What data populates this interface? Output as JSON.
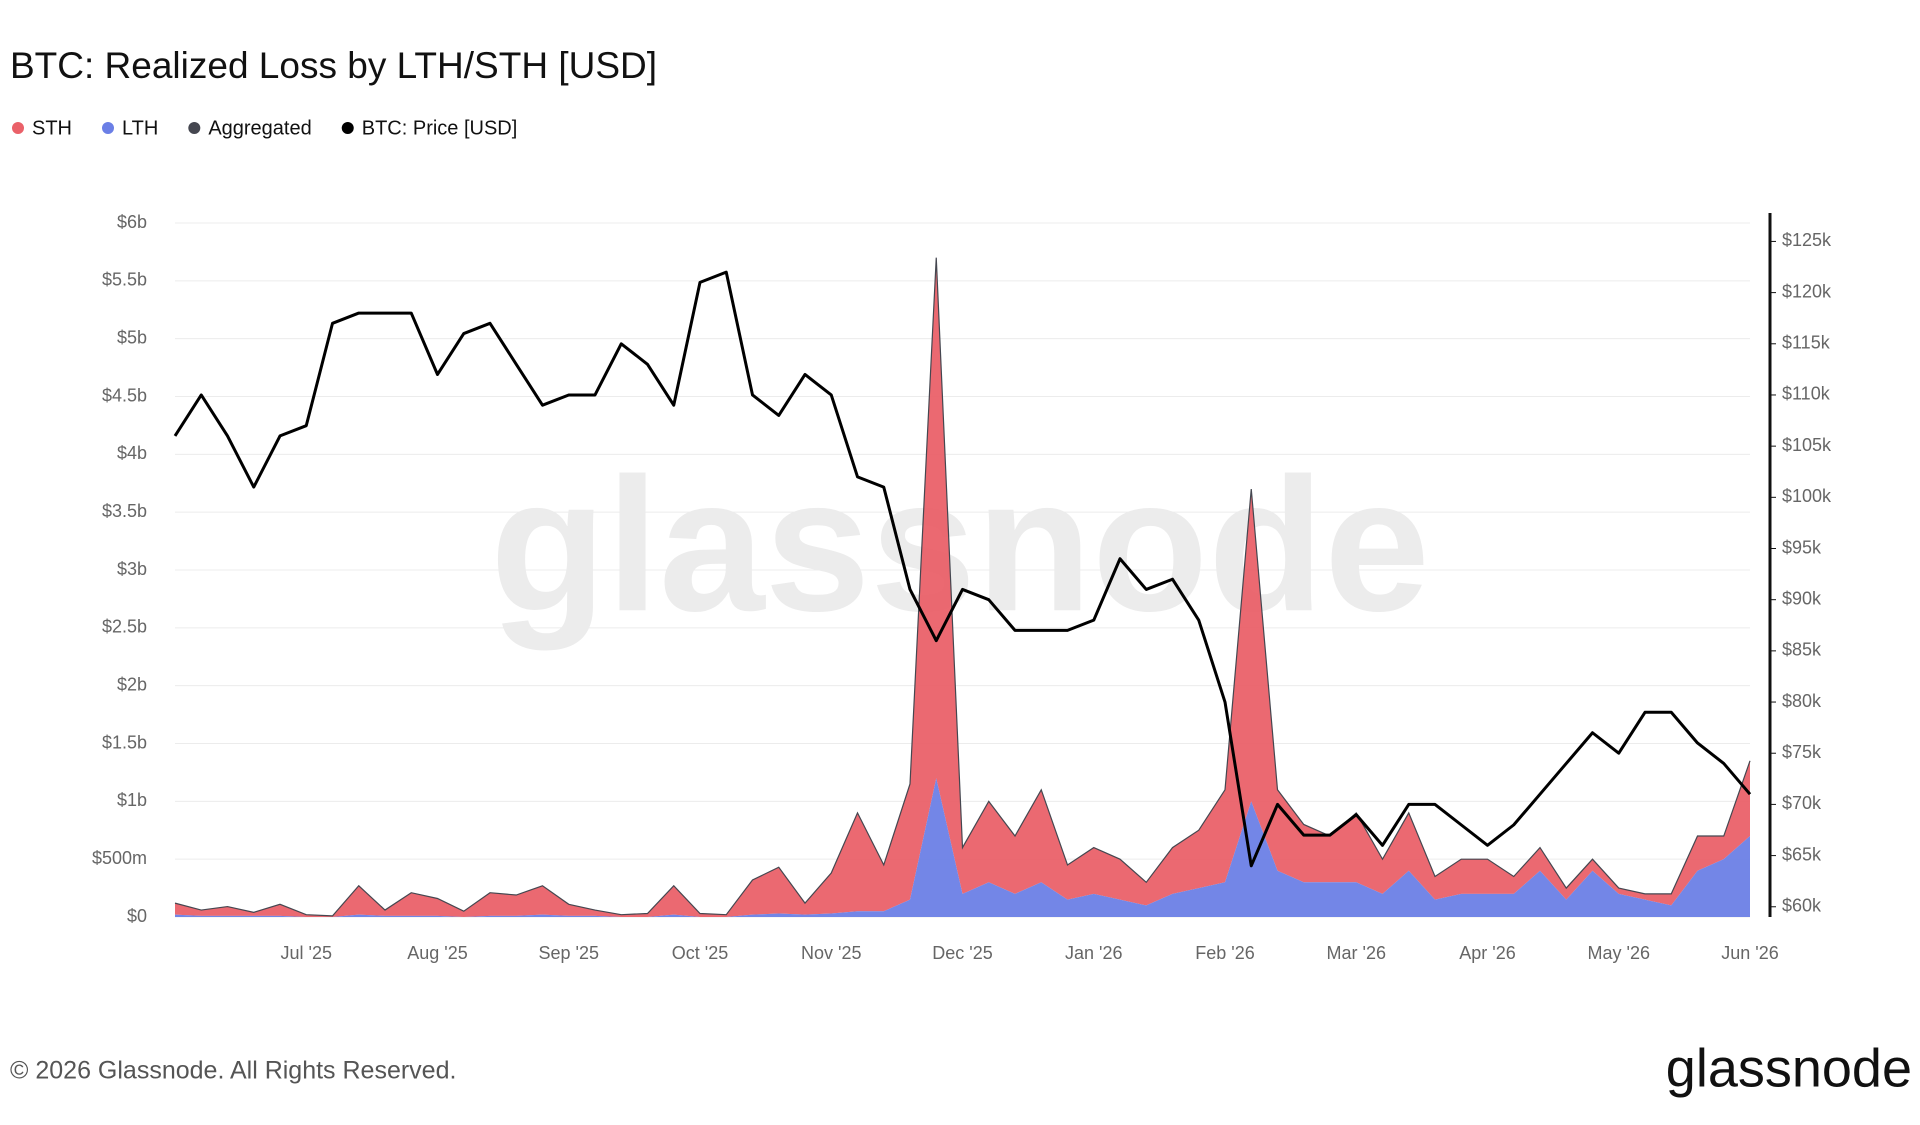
{
  "chart_data": {
    "type": "stacked-area-line",
    "title": "BTC: Realized Loss by LTH/STH [USD]",
    "categories": [
      null,
      null,
      null,
      null,
      null,
      "Jul '25",
      null,
      null,
      null,
      null,
      "Aug '25",
      null,
      null,
      null,
      null,
      "Sep '25",
      null,
      null,
      null,
      null,
      "Oct '25",
      null,
      null,
      null,
      null,
      "Nov '25",
      null,
      null,
      null,
      null,
      "Dec '25",
      null,
      null,
      null,
      null,
      "Jan '26",
      null,
      null,
      null,
      null,
      "Feb '26",
      null,
      null,
      null,
      null,
      "Mar '26",
      null,
      null,
      null,
      null,
      "Apr '26",
      null,
      null,
      null,
      null,
      "May '26",
      null,
      null,
      null,
      null,
      "Jun '26"
    ],
    "series": [
      {
        "name": "STH",
        "color": "#ea6169",
        "values": [
          100000000.0,
          50000000.0,
          80000000.0,
          30000000.0,
          100000000.0,
          20000000.0,
          10000000.0,
          250000000.0,
          50000000.0,
          200000000.0,
          150000000.0,
          50000000.0,
          200000000.0,
          180000000.0,
          250000000.0,
          100000000.0,
          50000000.0,
          20000000.0,
          30000000.0,
          250000000.0,
          30000000.0,
          20000000.0,
          300000000.0,
          400000000.0,
          100000000.0,
          350000000.0,
          850000000.0,
          400000000.0,
          1000000000.0,
          4500000000.0,
          400000000.0,
          700000000.0,
          500000000.0,
          800000000.0,
          300000000.0,
          400000000.0,
          350000000.0,
          200000000.0,
          400000000.0,
          500000000.0,
          800000000.0,
          2700000000.0,
          700000000.0,
          500000000.0,
          400000000.0,
          600000000.0,
          300000000.0,
          500000000.0,
          200000000.0,
          300000000.0,
          300000000.0,
          150000000.0,
          200000000.0,
          100000000.0,
          100000000.0,
          50000000.0,
          50000000.0,
          100000000.0,
          300000000.0,
          200000000.0,
          650000000.0
        ]
      },
      {
        "name": "LTH",
        "color": "#6b7fe6",
        "values": [
          20000000.0,
          10000000.0,
          10000000.0,
          10000000.0,
          10000000.0,
          0,
          0,
          20000000.0,
          10000000.0,
          10000000.0,
          10000000.0,
          0,
          10000000.0,
          10000000.0,
          20000000.0,
          10000000.0,
          10000000.0,
          0,
          0,
          20000000.0,
          0,
          0,
          20000000.0,
          30000000.0,
          20000000.0,
          30000000.0,
          50000000.0,
          50000000.0,
          150000000.0,
          1200000000.0,
          200000000.0,
          300000000.0,
          200000000.0,
          300000000.0,
          150000000.0,
          200000000.0,
          150000000.0,
          100000000.0,
          200000000.0,
          250000000.0,
          300000000.0,
          1000000000.0,
          400000000.0,
          300000000.0,
          300000000.0,
          300000000.0,
          200000000.0,
          400000000.0,
          150000000.0,
          200000000.0,
          200000000.0,
          200000000.0,
          400000000.0,
          150000000.0,
          400000000.0,
          200000000.0,
          150000000.0,
          100000000.0,
          400000000.0,
          500000000.0,
          700000000.0
        ]
      },
      {
        "name": "Aggregated",
        "color": "#454750",
        "values": [
          120000000.0,
          60000000.0,
          90000000.0,
          40000000.0,
          110000000.0,
          20000000.0,
          10000000.0,
          270000000.0,
          60000000.0,
          210000000.0,
          160000000.0,
          50000000.0,
          210000000.0,
          190000000.0,
          270000000.0,
          110000000.0,
          60000000.0,
          20000000.0,
          30000000.0,
          270000000.0,
          30000000.0,
          20000000.0,
          320000000.0,
          430000000.0,
          120000000.0,
          380000000.0,
          900000000.0,
          450000000.0,
          1150000000.0,
          5700000000.0,
          600000000.0,
          1000000000.0,
          700000000.0,
          1100000000.0,
          450000000.0,
          600000000.0,
          500000000.0,
          300000000.0,
          600000000.0,
          750000000.0,
          1100000000.0,
          3700000000.0,
          1100000000.0,
          800000000.0,
          700000000.0,
          900000000.0,
          500000000.0,
          900000000.0,
          350000000.0,
          500000000.0,
          500000000.0,
          350000000.0,
          600000000.0,
          250000000.0,
          500000000.0,
          250000000.0,
          200000000.0,
          200000000.0,
          700000000.0,
          700000000.0,
          1350000000.0
        ]
      },
      {
        "name": "BTC: Price [USD]",
        "color": "#000000",
        "axis": "y2",
        "values": [
          106000,
          110000,
          106000,
          101000,
          106000,
          107000,
          117000,
          118000,
          118000,
          118000,
          112000,
          116000,
          117000,
          113000,
          109000,
          110000,
          110000,
          115000,
          113000,
          109000,
          121000,
          122000,
          110000,
          108000,
          112000,
          110000,
          102000,
          101000,
          91000,
          86000,
          91000,
          90000,
          87000,
          87000,
          87000,
          88000,
          94000,
          91000,
          92000,
          88000,
          80000,
          64000,
          70000,
          67000,
          67000,
          69000,
          66000,
          70000,
          70000,
          68000,
          66000,
          68000,
          71000,
          74000,
          77000,
          75000,
          79000,
          79000,
          76000,
          74000,
          71000
        ]
      }
    ],
    "ylim": [
      0,
      6000000000.0
    ],
    "yticks": [
      {
        "value": 0,
        "label": "$0"
      },
      {
        "value": 500000000.0,
        "label": "$500m"
      },
      {
        "value": 1000000000.0,
        "label": "$1b"
      },
      {
        "value": 1500000000.0,
        "label": "$1.5b"
      },
      {
        "value": 2000000000.0,
        "label": "$2b"
      },
      {
        "value": 2500000000.0,
        "label": "$2.5b"
      },
      {
        "value": 3000000000.0,
        "label": "$3b"
      },
      {
        "value": 3500000000.0,
        "label": "$3.5b"
      },
      {
        "value": 4000000000.0,
        "label": "$4b"
      },
      {
        "value": 4500000000.0,
        "label": "$4.5b"
      },
      {
        "value": 5000000000.0,
        "label": "$5b"
      },
      {
        "value": 5500000000.0,
        "label": "$5.5b"
      },
      {
        "value": 6000000000.0,
        "label": "$6b"
      }
    ],
    "y2lim": [
      59000,
      126800
    ],
    "y2ticks": [
      {
        "value": 60000,
        "label": "$60k"
      },
      {
        "value": 65000,
        "label": "$65k"
      },
      {
        "value": 70000,
        "label": "$70k"
      },
      {
        "value": 75000,
        "label": "$75k"
      },
      {
        "value": 80000,
        "label": "$80k"
      },
      {
        "value": 85000,
        "label": "$85k"
      },
      {
        "value": 90000,
        "label": "$90k"
      },
      {
        "value": 95000,
        "label": "$95k"
      },
      {
        "value": 100000,
        "label": "$100k"
      },
      {
        "value": 105000,
        "label": "$105k"
      },
      {
        "value": 110000,
        "label": "$110k"
      },
      {
        "value": 115000,
        "label": "$115k"
      },
      {
        "value": 120000,
        "label": "$120k"
      },
      {
        "value": 125000,
        "label": "$125k"
      }
    ],
    "grid": true
  },
  "footer": "© 2026 Glassnode. All Rights Reserved.",
  "brand": "glassnode"
}
